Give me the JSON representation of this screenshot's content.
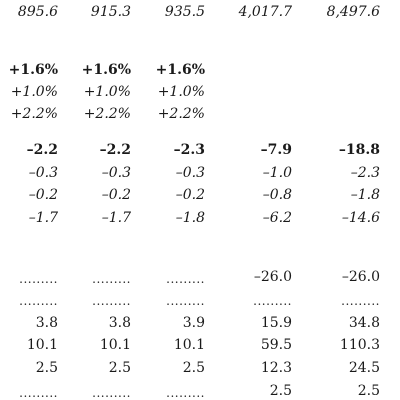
{
  "rows": [
    {
      "style": "italic",
      "cells": [
        "895.6",
        "915.3",
        "935.5",
        "4,017.7",
        "8,497.6"
      ]
    },
    {
      "style": "bold",
      "cells": [
        "+1.6%",
        "+1.6%",
        "+1.6%",
        "",
        ""
      ]
    },
    {
      "style": "italic",
      "cells": [
        "+1.0%",
        "+1.0%",
        "+1.0%",
        "",
        ""
      ]
    },
    {
      "style": "italic",
      "cells": [
        "+2.2%",
        "+2.2%",
        "+2.2%",
        "",
        ""
      ]
    },
    {
      "style": "bold",
      "cells": [
        "–2.2",
        "–2.2",
        "–2.3",
        "–7.9",
        "–18.8"
      ]
    },
    {
      "style": "italic",
      "cells": [
        "–0.3",
        "–0.3",
        "–0.3",
        "–1.0",
        "–2.3"
      ]
    },
    {
      "style": "italic",
      "cells": [
        "–0.2",
        "–0.2",
        "–0.2",
        "–0.8",
        "–1.8"
      ]
    },
    {
      "style": "italic",
      "cells": [
        "–1.7",
        "–1.7",
        "–1.8",
        "–6.2",
        "–14.6"
      ]
    },
    {
      "style": "regular",
      "cells": [
        ".........",
        ".........",
        ".........",
        "–26.0",
        "–26.0"
      ]
    },
    {
      "style": "regular",
      "cells": [
        ".........",
        ".........",
        ".........",
        ".........",
        "........."
      ]
    },
    {
      "style": "regular",
      "cells": [
        "3.8",
        "3.8",
        "3.9",
        "15.9",
        "34.8"
      ]
    },
    {
      "style": "regular",
      "cells": [
        "10.1",
        "10.1",
        "10.1",
        "59.5",
        "110.3"
      ]
    },
    {
      "style": "regular",
      "cells": [
        "2.5",
        "2.5",
        "2.5",
        "12.3",
        "24.5"
      ]
    },
    {
      "style": "regular",
      "cells": [
        ".........",
        ".........",
        ".........",
        "2.5",
        "2.5"
      ]
    }
  ]
}
